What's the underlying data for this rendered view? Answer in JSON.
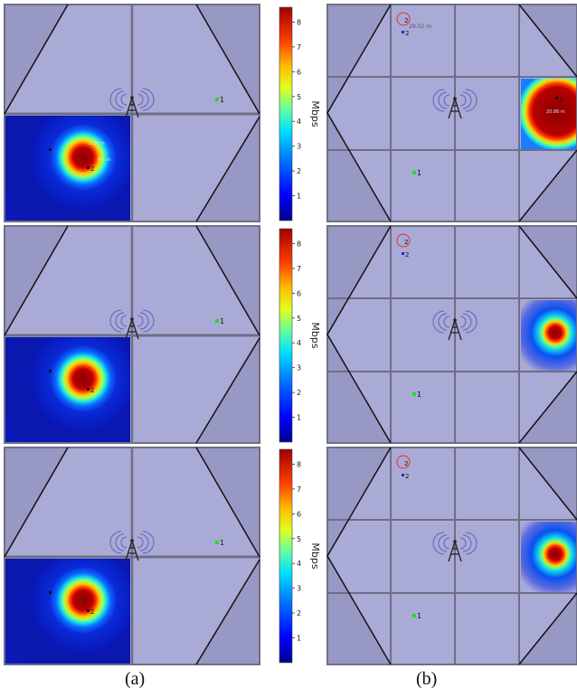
{
  "colors": {
    "room": "#aaaad6",
    "triangle": "#9898c4",
    "wall": "#6e6e86",
    "user1": "#22dd22",
    "user2": "#1a2bd0",
    "circle": "#e03030"
  },
  "colorbar": {
    "unit": "Mbps",
    "ticks": [
      "1",
      "2",
      "3",
      "4",
      "5",
      "6",
      "7",
      "8"
    ],
    "min": 0,
    "max": 8.6
  },
  "labels": {
    "user_one": "1",
    "user_two": "2",
    "dist_b_top": "28.02 m",
    "dist_b_right": "20.86 m",
    "dist_a_1": "5.98 m",
    "dist_a_2": "4.5 m"
  },
  "captions": {
    "a": "(a)",
    "b": "(b)"
  }
}
